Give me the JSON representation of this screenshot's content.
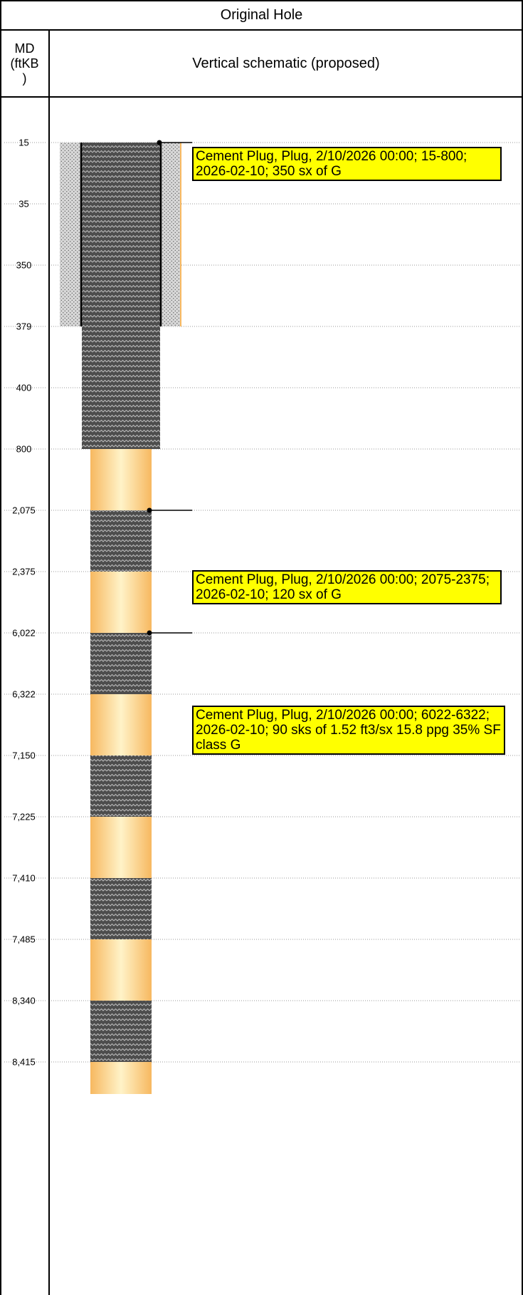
{
  "header": {
    "title": "Original Hole",
    "md_column": "MD\n(ftKB\n)",
    "schematic_column": "Vertical schematic (proposed)"
  },
  "depth_labels": [
    "15",
    "35",
    "350",
    "379",
    "400",
    "800",
    "2,075",
    "2,375",
    "6,022",
    "6,322",
    "7,150",
    "7,225",
    "7,410",
    "7,485",
    "8,340",
    "8,415"
  ],
  "casing": {
    "top_md": "15",
    "bottom_md": "379",
    "cement_sheath": "dotted"
  },
  "plugs": [
    {
      "top": "15",
      "bottom": "800"
    },
    {
      "top": "2,075",
      "bottom": "2,375"
    },
    {
      "top": "6,022",
      "bottom": "6,322"
    },
    {
      "top": "7,150",
      "bottom": "7,225"
    },
    {
      "top": "7,410",
      "bottom": "7,485"
    },
    {
      "top": "8,340",
      "bottom": "8,415"
    }
  ],
  "annotations": [
    {
      "text": "Cement Plug, Plug, 2/10/2026 00:00; 15-800; 2026-02-10; 350 sx of G",
      "anchor_md": "15"
    },
    {
      "text": "Cement Plug, Plug, 2/10/2026 00:00; 2075-2375; 2026-02-10; 120 sx of G",
      "anchor_md": "2,075"
    },
    {
      "text": "Cement Plug, Plug, 2/10/2026 00:00; 6022-6322; 2026-02-10; 90 sks of 1.52 ft3/sx 15.8 ppg 35% SF class G",
      "anchor_md": "6,022"
    }
  ],
  "colors": {
    "callout_fill": "#ffff00",
    "plug_fill": "#4d4d4d",
    "openhole_edge": "#f7b860",
    "openhole_center": "#fff3c8",
    "sheath_fill": "#d4d4d4",
    "gridline": "#999999"
  }
}
